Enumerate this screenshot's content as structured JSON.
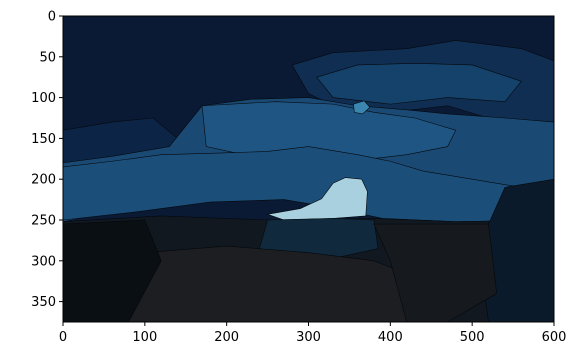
{
  "chart_data": {
    "type": "image",
    "title": "",
    "xlabel": "",
    "ylabel": "",
    "xlim": [
      0,
      600
    ],
    "ylim": [
      375,
      0
    ],
    "y_axis_inverted": true,
    "grid": false,
    "x_ticks": [
      0,
      100,
      200,
      300,
      400,
      500,
      600
    ],
    "y_ticks": [
      0,
      50,
      100,
      150,
      200,
      250,
      300,
      350
    ],
    "x_tick_labels": [
      "0",
      "100",
      "200",
      "300",
      "400",
      "500",
      "600"
    ],
    "y_tick_labels": [
      "0",
      "50",
      "100",
      "150",
      "200",
      "250",
      "300",
      "350"
    ],
    "regions": [
      {
        "name": "sky",
        "color": "#0a1a35",
        "points": [
          [
            0,
            0
          ],
          [
            600,
            0
          ],
          [
            600,
            375
          ],
          [
            0,
            375
          ]
        ]
      },
      {
        "name": "upper-cloud-band",
        "color": "#0f2e52",
        "points": [
          [
            280,
            60
          ],
          [
            330,
            45
          ],
          [
            420,
            40
          ],
          [
            480,
            30
          ],
          [
            560,
            40
          ],
          [
            600,
            55
          ],
          [
            600,
            130
          ],
          [
            520,
            125
          ],
          [
            470,
            110
          ],
          [
            400,
            118
          ],
          [
            330,
            110
          ],
          [
            300,
            95
          ]
        ]
      },
      {
        "name": "upper-cloud-highlight",
        "color": "#14426a",
        "points": [
          [
            310,
            75
          ],
          [
            360,
            60
          ],
          [
            430,
            58
          ],
          [
            500,
            60
          ],
          [
            560,
            80
          ],
          [
            540,
            105
          ],
          [
            470,
            100
          ],
          [
            400,
            108
          ],
          [
            330,
            100
          ]
        ]
      },
      {
        "name": "left-cloud-edge",
        "color": "#0c2546",
        "points": [
          [
            0,
            140
          ],
          [
            60,
            130
          ],
          [
            110,
            125
          ],
          [
            140,
            150
          ],
          [
            120,
            170
          ],
          [
            60,
            178
          ],
          [
            0,
            180
          ]
        ]
      },
      {
        "name": "middle-cloud-band",
        "color": "#1a4a74",
        "points": [
          [
            0,
            180
          ],
          [
            60,
            172
          ],
          [
            130,
            160
          ],
          [
            170,
            110
          ],
          [
            230,
            102
          ],
          [
            300,
            100
          ],
          [
            360,
            110
          ],
          [
            420,
            115
          ],
          [
            470,
            120
          ],
          [
            540,
            125
          ],
          [
            600,
            130
          ],
          [
            600,
            252
          ],
          [
            460,
            248
          ],
          [
            380,
            240
          ],
          [
            320,
            225
          ],
          [
            280,
            215
          ],
          [
            200,
            212
          ],
          [
            120,
            230
          ],
          [
            0,
            252
          ]
        ]
      },
      {
        "name": "middle-cloud-shade",
        "color": "#1f5582",
        "points": [
          [
            170,
            110
          ],
          [
            260,
            105
          ],
          [
            330,
            108
          ],
          [
            380,
            118
          ],
          [
            430,
            125
          ],
          [
            480,
            140
          ],
          [
            470,
            160
          ],
          [
            420,
            170
          ],
          [
            350,
            178
          ],
          [
            290,
            168
          ],
          [
            230,
            172
          ],
          [
            175,
            160
          ]
        ]
      },
      {
        "name": "lower-cloud-band",
        "color": "#1b4f7a",
        "points": [
          [
            0,
            185
          ],
          [
            60,
            178
          ],
          [
            120,
            170
          ],
          [
            190,
            168
          ],
          [
            250,
            166
          ],
          [
            300,
            160
          ],
          [
            360,
            170
          ],
          [
            400,
            178
          ],
          [
            440,
            190
          ],
          [
            500,
            200
          ],
          [
            560,
            210
          ],
          [
            600,
            210
          ],
          [
            600,
            250
          ],
          [
            480,
            252
          ],
          [
            390,
            248
          ],
          [
            330,
            235
          ],
          [
            270,
            225
          ],
          [
            180,
            228
          ],
          [
            90,
            240
          ],
          [
            0,
            250
          ]
        ]
      },
      {
        "name": "bright-sky-patch",
        "color": "#a8d0de",
        "points": [
          [
            250,
            243
          ],
          [
            290,
            236
          ],
          [
            316,
            224
          ],
          [
            330,
            205
          ],
          [
            345,
            198
          ],
          [
            365,
            200
          ],
          [
            372,
            215
          ],
          [
            370,
            245
          ],
          [
            330,
            248
          ],
          [
            270,
            250
          ]
        ]
      },
      {
        "name": "bright-sky-spot",
        "color": "#3a86b0",
        "points": [
          [
            355,
            108
          ],
          [
            368,
            104
          ],
          [
            375,
            112
          ],
          [
            366,
            120
          ],
          [
            356,
            118
          ]
        ]
      },
      {
        "name": "dark-ground",
        "color": "#111820",
        "points": [
          [
            0,
            252
          ],
          [
            120,
            245
          ],
          [
            250,
            250
          ],
          [
            380,
            248
          ],
          [
            480,
            252
          ],
          [
            600,
            250
          ],
          [
            600,
            375
          ],
          [
            0,
            375
          ]
        ]
      },
      {
        "name": "ground-right-dark",
        "color": "#0b1a2a",
        "points": [
          [
            540,
            210
          ],
          [
            600,
            200
          ],
          [
            600,
            375
          ],
          [
            520,
            375
          ],
          [
            510,
            300
          ],
          [
            520,
            255
          ]
        ]
      },
      {
        "name": "ground-mid-blue",
        "color": "#10293d",
        "points": [
          [
            250,
            250
          ],
          [
            330,
            248
          ],
          [
            380,
            250
          ],
          [
            385,
            285
          ],
          [
            340,
            295
          ],
          [
            280,
            300
          ],
          [
            240,
            285
          ]
        ]
      },
      {
        "name": "ground-lower-grey",
        "color": "#1c1e22",
        "points": [
          [
            100,
            290
          ],
          [
            200,
            282
          ],
          [
            300,
            290
          ],
          [
            380,
            300
          ],
          [
            430,
            320
          ],
          [
            420,
            375
          ],
          [
            80,
            375
          ],
          [
            70,
            330
          ]
        ]
      },
      {
        "name": "ground-left-black",
        "color": "#0a0f14",
        "points": [
          [
            0,
            255
          ],
          [
            100,
            250
          ],
          [
            120,
            300
          ],
          [
            80,
            375
          ],
          [
            0,
            375
          ]
        ]
      },
      {
        "name": "ground-right-grey",
        "color": "#16191d",
        "points": [
          [
            380,
            255
          ],
          [
            520,
            255
          ],
          [
            530,
            340
          ],
          [
            470,
            375
          ],
          [
            420,
            375
          ],
          [
            400,
            300
          ]
        ]
      }
    ]
  }
}
